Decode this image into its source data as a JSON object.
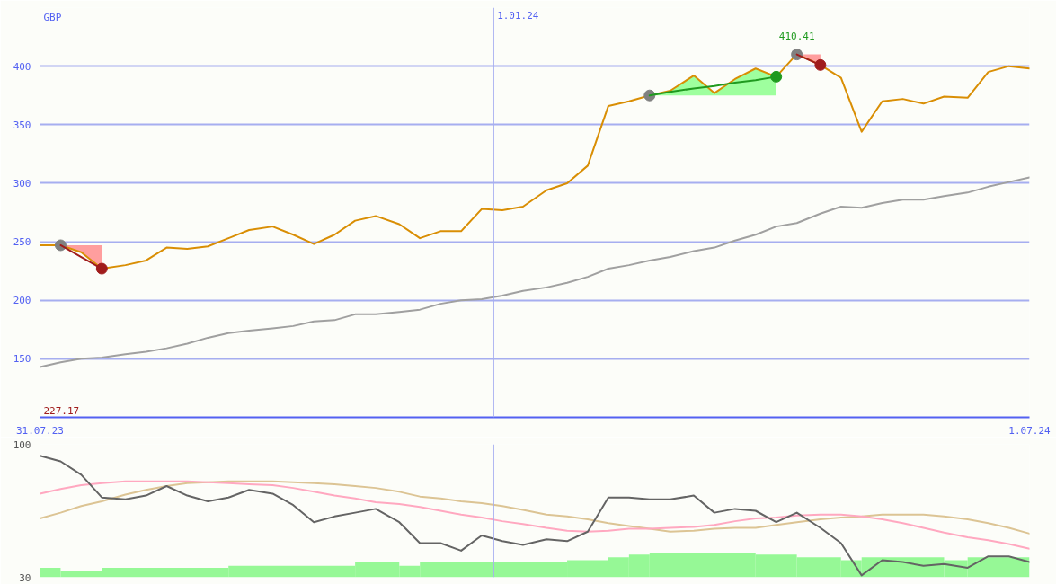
{
  "chart_data": [
    {
      "type": "line",
      "ylabel": "GBP",
      "annotations": [
        "227.17"
      ],
      "x": [
        "2023-07-31",
        "2023-08-07",
        "2023-08-14",
        "2023-08-21",
        "2023-08-29",
        "2023-09-05",
        "2023-09-12",
        "2023-09-19",
        "2023-09-26",
        "2023-10-03",
        "2023-10-10",
        "2023-10-18",
        "2023-10-25",
        "2023-11-01",
        "2023-11-08",
        "2023-11-15",
        "2023-11-22",
        "2023-11-30",
        "2023-12-07",
        "2023-12-14",
        "2023-12-21",
        "2023-12-28",
        "2024-01-04",
        "2024-01-11",
        "2024-01-19",
        "2024-01-26",
        "2024-02-02",
        "2024-02-09",
        "2024-02-16",
        "2024-02-23",
        "2024-03-01",
        "2024-03-09",
        "2024-03-16",
        "2024-03-23",
        "2024-03-30",
        "2024-04-06",
        "2024-04-13",
        "2024-04-21",
        "2024-04-28",
        "2024-05-05",
        "2024-05-12",
        "2024-05-19",
        "2024-05-26",
        "2024-06-02",
        "2024-06-10",
        "2024-06-17",
        "2024-06-24",
        "2024-07-01"
      ],
      "xlim": [
        "2023-07-31",
        "2024-07-01"
      ],
      "xticks": [
        {
          "value": "2023-07-31",
          "label": "31.07.23"
        },
        {
          "value": "2024-07-01",
          "label": "1.07.24"
        }
      ],
      "ylim": [
        100,
        450
      ],
      "yticks": [
        150,
        200,
        250,
        300,
        350,
        400
      ],
      "grid": "y",
      "ref_lines": [
        {
          "axis": "x",
          "value": "2024-01-01",
          "label": "1.01.24",
          "color": "#a6aef0"
        }
      ],
      "series": [
        {
          "color": "#a0a0a0",
          "values": [
            143,
            147,
            150,
            151,
            154,
            156,
            159,
            163,
            168,
            172,
            174,
            176,
            178,
            182,
            183,
            188,
            188,
            190,
            192,
            197,
            200,
            201,
            204,
            208,
            211,
            215,
            220,
            227,
            230,
            234,
            237,
            242,
            245,
            251,
            256,
            263,
            266,
            274,
            280,
            279,
            283,
            286,
            286,
            289,
            292,
            297,
            301,
            305
          ]
        },
        {
          "color": "#d98e04",
          "values": [
            247,
            247,
            241,
            227,
            230,
            234,
            245,
            244,
            246,
            253,
            260,
            263,
            256,
            248,
            256,
            268,
            272,
            265,
            253,
            259,
            259,
            278,
            277,
            280,
            294,
            300,
            315,
            366,
            370,
            375,
            379,
            392,
            377,
            389,
            398,
            391,
            410.41,
            401,
            390,
            344,
            370,
            372,
            368,
            374,
            373,
            395,
            400,
            398
          ],
          "value_labels": [
            null,
            null,
            null,
            null,
            null,
            null,
            null,
            null,
            null,
            null,
            null,
            null,
            null,
            null,
            null,
            null,
            null,
            null,
            null,
            null,
            null,
            null,
            null,
            null,
            null,
            null,
            null,
            null,
            null,
            null,
            null,
            null,
            null,
            null,
            null,
            null,
            "410.41",
            null,
            null,
            null,
            null,
            null,
            null,
            null,
            null,
            null,
            null,
            null
          ]
        },
        {
          "type": "scatter",
          "marker": "circle",
          "color": "#808080",
          "x": [
            "2023-08-07",
            "2024-02-23",
            "2024-04-13"
          ],
          "values": [
            247,
            375,
            410
          ]
        },
        {
          "type": "scatter",
          "marker": "circle",
          "color": "#a01c1c",
          "x": [
            "2023-08-21",
            "2024-04-21"
          ],
          "values": [
            227,
            401
          ]
        },
        {
          "type": "scatter",
          "marker": "circle",
          "color": "#1f9a1f",
          "x": [
            "2024-04-06"
          ],
          "values": [
            391
          ]
        },
        {
          "type": "line",
          "color": "#a01c1c",
          "x": [
            "2023-08-07",
            "2023-08-14",
            "2023-08-21"
          ],
          "values": [
            247,
            237,
            227
          ],
          "lower": [
            247,
            241,
            227
          ],
          "upper": [
            247,
            247,
            247
          ]
        },
        {
          "type": "line",
          "color": "#1f9a1f",
          "x": [
            "2024-02-23",
            "2024-03-01",
            "2024-03-09",
            "2024-03-16",
            "2024-03-23",
            "2024-03-30",
            "2024-04-06"
          ],
          "values": [
            375,
            378,
            381,
            383,
            386,
            388,
            391
          ],
          "lower": [
            375,
            375,
            375,
            375,
            375,
            375,
            375
          ],
          "upper": [
            375,
            379,
            392,
            377,
            389,
            398,
            391
          ]
        },
        {
          "type": "line",
          "color": "#a01c1c",
          "x": [
            "2024-04-13",
            "2024-04-21"
          ],
          "values": [
            410,
            401
          ],
          "lower": [
            410,
            401
          ],
          "upper": [
            410,
            410
          ]
        }
      ]
    },
    {
      "type": "line",
      "x": [
        "2023-07-31",
        "2023-08-07",
        "2023-08-14",
        "2023-08-21",
        "2023-08-29",
        "2023-09-05",
        "2023-09-12",
        "2023-09-19",
        "2023-09-26",
        "2023-10-03",
        "2023-10-10",
        "2023-10-18",
        "2023-10-25",
        "2023-11-01",
        "2023-11-08",
        "2023-11-15",
        "2023-11-22",
        "2023-11-30",
        "2023-12-07",
        "2023-12-14",
        "2023-12-21",
        "2023-12-28",
        "2024-01-04",
        "2024-01-11",
        "2024-01-19",
        "2024-01-26",
        "2024-02-02",
        "2024-02-09",
        "2024-02-16",
        "2024-02-23",
        "2024-03-01",
        "2024-03-09",
        "2024-03-16",
        "2024-03-23",
        "2024-03-30",
        "2024-04-06",
        "2024-04-13",
        "2024-04-21",
        "2024-04-28",
        "2024-05-05",
        "2024-05-12",
        "2024-05-19",
        "2024-05-26",
        "2024-06-02",
        "2024-06-10",
        "2024-06-17",
        "2024-06-24",
        "2024-07-01"
      ],
      "xlim": [
        "2023-07-31",
        "2024-07-01"
      ],
      "ylim": [
        30,
        100
      ],
      "yticks": [
        30,
        100
      ],
      "tick_labels": "y",
      "ref_lines": [
        {
          "axis": "x",
          "value": "2024-01-01",
          "color": "#a6aef0"
        }
      ],
      "series": [
        {
          "type": "histogram",
          "color": "#96f896",
          "bins": [
            "2023-07-31",
            "2023-08-07",
            "2023-08-21",
            "2023-10-03",
            "2023-11-15",
            "2023-11-30",
            "2023-12-07",
            "2024-01-26",
            "2024-02-09",
            "2024-02-16",
            "2024-02-23",
            "2024-03-30",
            "2024-04-13",
            "2024-04-28",
            "2024-05-05",
            "2024-06-02",
            "2024-06-10",
            "2024-07-01"
          ],
          "values": [
            35,
            33.5,
            35,
            36,
            38,
            36,
            38,
            39,
            40.5,
            42,
            43,
            42,
            40.5,
            39,
            40.5,
            39,
            40.5
          ]
        },
        {
          "color": "#dcc494",
          "values": [
            61,
            64,
            67.5,
            70,
            73.5,
            76,
            78,
            79.5,
            80,
            80.5,
            80.5,
            80.5,
            80,
            79.5,
            79,
            78,
            77,
            75,
            72.5,
            71.5,
            70,
            69,
            67.5,
            65.5,
            63,
            62,
            60.5,
            58.5,
            57,
            55.5,
            54,
            54.5,
            55.5,
            56,
            56,
            57.5,
            59,
            60.5,
            61.5,
            62,
            63,
            63,
            63,
            62,
            60.5,
            58.5,
            56,
            53
          ]
        },
        {
          "color": "#ffa8c0",
          "values": [
            74,
            76.5,
            78.5,
            79.5,
            80.5,
            80.5,
            80.5,
            80.5,
            80,
            79.5,
            79,
            78.5,
            77,
            75,
            73,
            71.5,
            69.5,
            68.5,
            67,
            65,
            63,
            61.5,
            59.5,
            58,
            56,
            54.5,
            54,
            54.5,
            55.5,
            55.5,
            56,
            56.5,
            57.5,
            59.5,
            61,
            61.5,
            62.5,
            63,
            63,
            62,
            60.5,
            58.5,
            56,
            53.5,
            51,
            49.5,
            47.5,
            45
          ]
        },
        {
          "color": "#646464",
          "values": [
            94,
            91,
            84,
            72,
            71,
            73,
            78,
            73,
            70,
            72,
            76,
            74,
            68,
            59,
            62,
            64,
            66,
            59,
            48,
            48,
            44,
            52,
            49,
            47,
            50,
            49,
            54,
            72,
            72,
            71,
            71,
            73,
            64,
            66,
            65,
            59,
            64,
            56,
            48,
            31,
            39,
            38,
            36,
            37,
            35,
            41,
            41,
            38
          ]
        }
      ]
    }
  ]
}
